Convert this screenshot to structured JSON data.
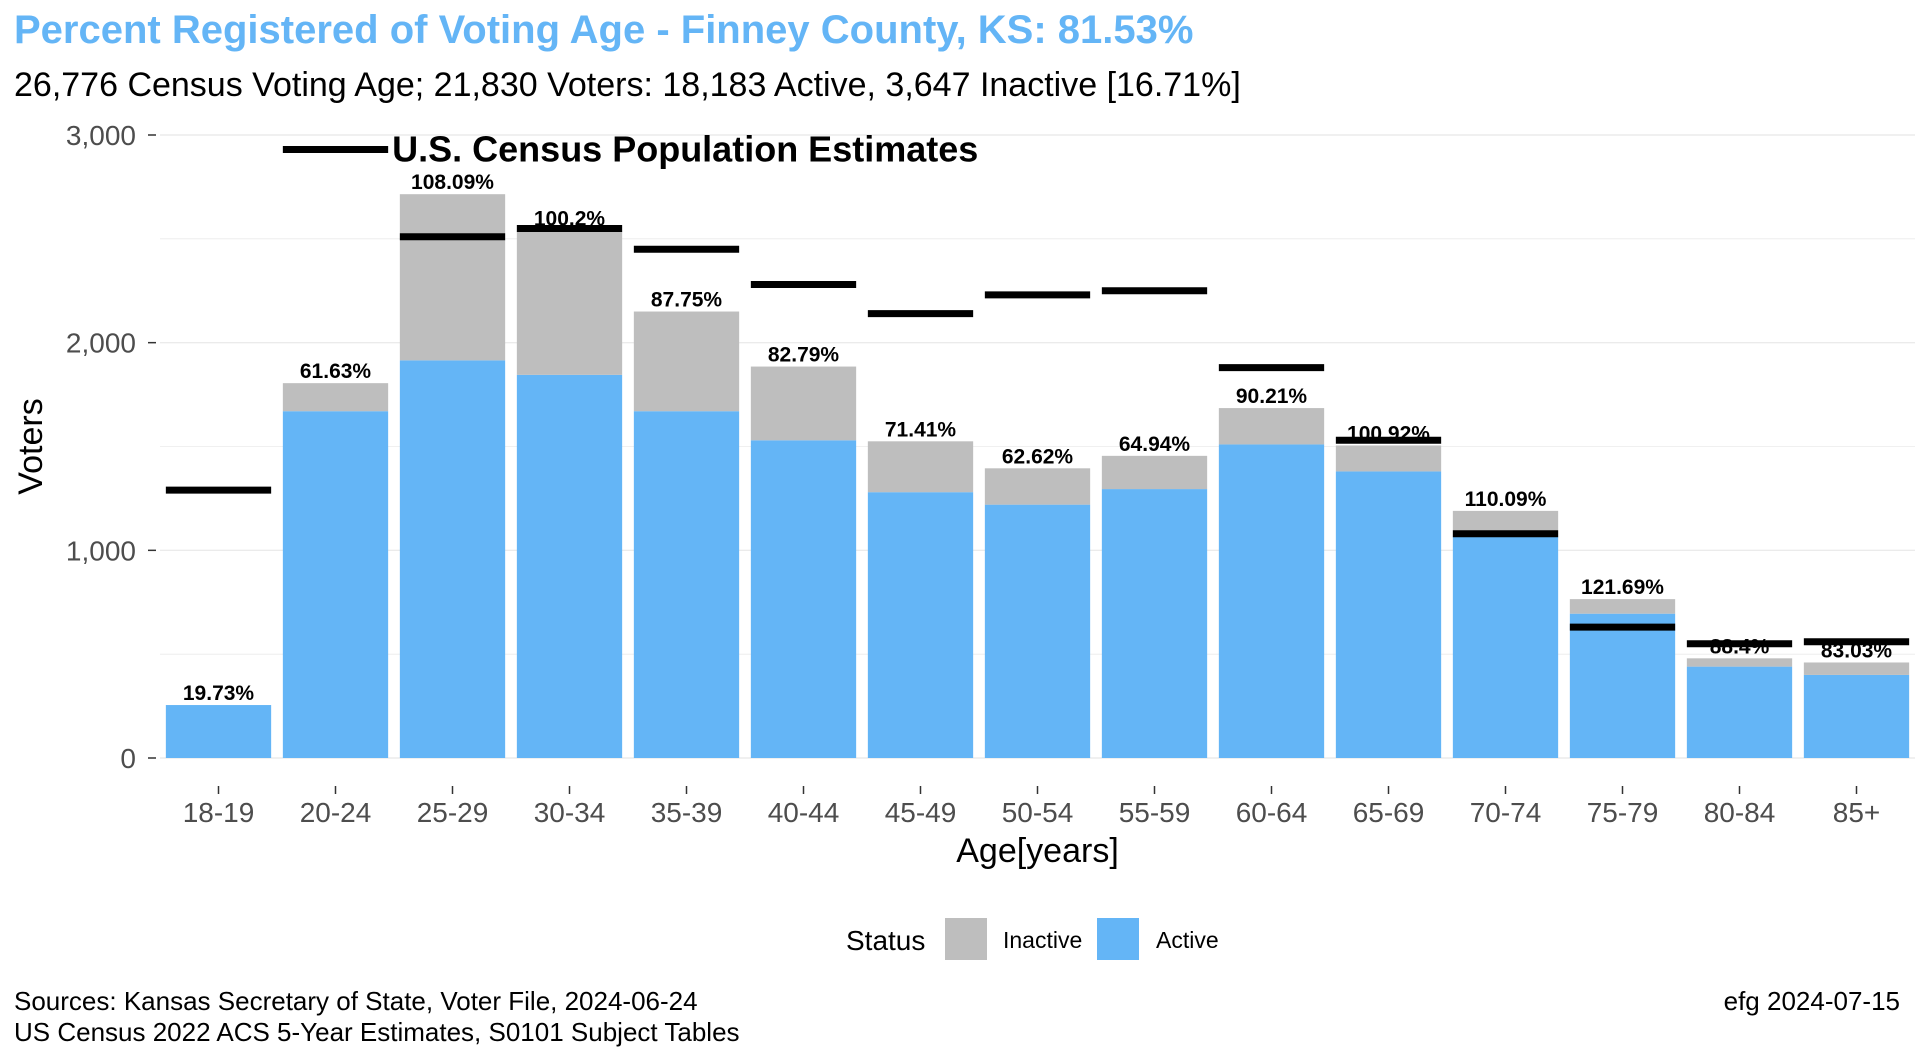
{
  "title": "Percent Registered of Voting Age - Finney County, KS: 81.53%",
  "subtitle": "26,776 Census Voting Age; 21,830 Voters:  18,183 Active, 3,647 Inactive [16.71%]",
  "caption": {
    "line1": "Sources: Kansas Secretary of State, Voter File, 2024-06-24",
    "line2": "US Census 2022 ACS 5-Year Estimates, S0101 Subject Tables"
  },
  "credit": "efg 2024-07-15",
  "colors": {
    "active": "#64B5F6",
    "inactive": "#BEBEBE",
    "census": "#000000",
    "title": "#64B5F6",
    "grid": "#EBEBEB"
  },
  "chart_data": {
    "type": "bar",
    "stacked": true,
    "xlabel": "Age[years]",
    "ylabel": "Voters",
    "ylim": [
      0,
      3000
    ],
    "yticks": [
      0,
      1000,
      2000,
      3000
    ],
    "ytick_labels": [
      "0",
      "1,000",
      "2,000",
      "3,000"
    ],
    "grid": true,
    "categories": [
      "18-19",
      "20-24",
      "25-29",
      "30-34",
      "35-39",
      "40-44",
      "45-49",
      "50-54",
      "55-59",
      "60-64",
      "65-69",
      "70-74",
      "75-79",
      "80-84",
      "85+"
    ],
    "series": [
      {
        "name": "Active",
        "values": [
          255,
          1670,
          1915,
          1845,
          1670,
          1530,
          1280,
          1220,
          1295,
          1510,
          1380,
          1070,
          695,
          440,
          400
        ]
      },
      {
        "name": "Inactive",
        "values": [
          0,
          135,
          800,
          695,
          480,
          355,
          245,
          175,
          160,
          175,
          125,
          120,
          70,
          40,
          60
        ]
      }
    ],
    "census_estimates": [
      1290,
      2930,
      2510,
      2550,
      2450,
      2280,
      2140,
      2230,
      2250,
      1880,
      1530,
      1080,
      630,
      550,
      560
    ],
    "percent_labels": [
      "19.73%",
      "61.63%",
      "108.09%",
      "100.2%",
      "87.75%",
      "82.79%",
      "71.41%",
      "62.62%",
      "64.94%",
      "90.21%",
      "100.92%",
      "110.09%",
      "121.69%",
      "88.4%",
      "83.03%"
    ],
    "annotation": "U.S. Census Population Estimates",
    "legend": {
      "title": "Status",
      "position": "bottom",
      "items": [
        "Inactive",
        "Active"
      ]
    }
  }
}
